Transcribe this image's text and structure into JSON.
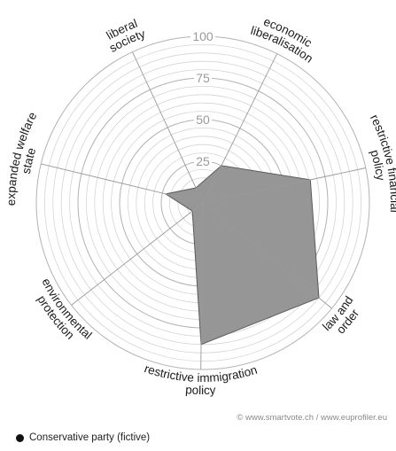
{
  "chart_data": {
    "type": "radar",
    "axes": [
      "liberal society",
      "economic liberalisation",
      "restrictive financial policy",
      "law and order",
      "restrictive immigration policy",
      "environmental protection",
      "expanded welfare state"
    ],
    "axis_label_lines": [
      [
        "liberal",
        "society"
      ],
      [
        "economic",
        "liberalisation"
      ],
      [
        "restrictive financial",
        "policy"
      ],
      [
        "law and",
        "order"
      ],
      [
        "restrictive immigration",
        "policy"
      ],
      [
        "environmental",
        "protection"
      ],
      [
        "expanded welfare",
        "state"
      ]
    ],
    "series": [
      {
        "name": "Conservative party (fictive)",
        "values": [
          10,
          25,
          66,
          90,
          85,
          8,
          23
        ]
      }
    ],
    "rlim": [
      0,
      100
    ],
    "ticks": [
      25,
      50,
      75,
      100
    ],
    "legend_position": "bottom-left",
    "grid": true
  },
  "credit": "© www.smartvote.ch / www.euprofiler.eu",
  "legend": {
    "label": "Conservative party (fictive)"
  },
  "colors": {
    "fill": "#969696",
    "stroke": "#5a5a5a",
    "grid": "#bdbdbd",
    "legend_dot": "#111111"
  }
}
